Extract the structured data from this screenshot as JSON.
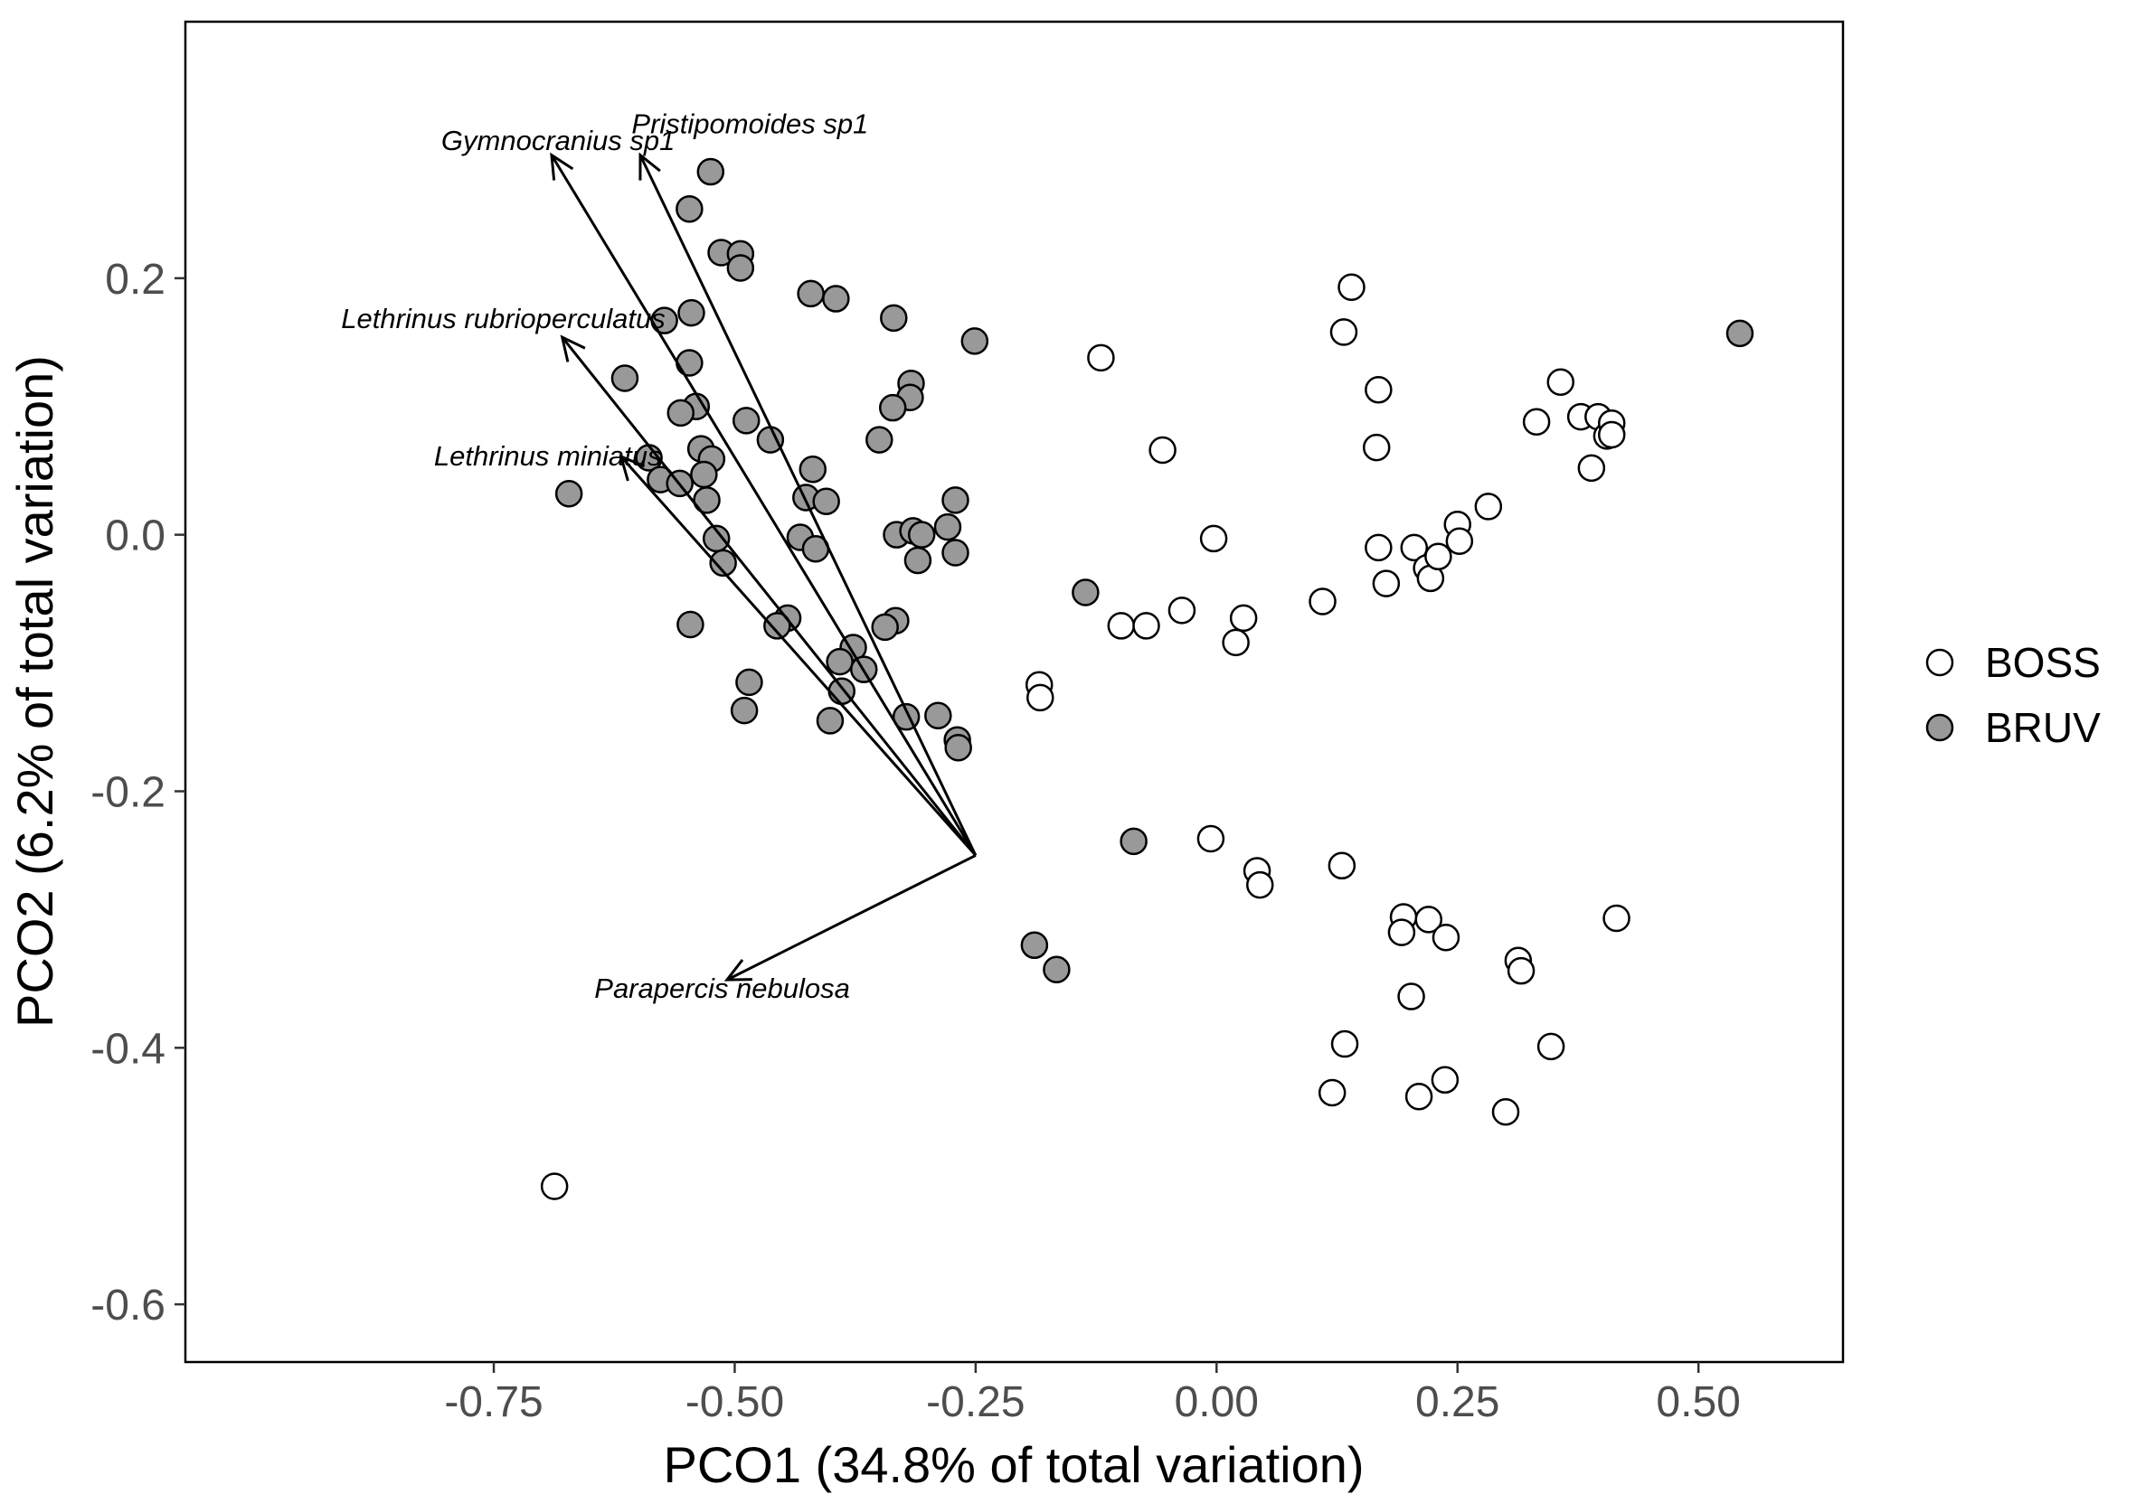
{
  "chart_data": {
    "type": "scatter",
    "title": "",
    "xlabel": "PCO1 (34.8% of total variation)",
    "ylabel": "PCO2 (6.2% of total variation)",
    "xlim": [
      -1.07,
      0.65
    ],
    "ylim": [
      -0.645,
      0.4
    ],
    "x_ticks": [
      -0.75,
      -0.5,
      -0.25,
      0.0,
      0.25,
      0.5
    ],
    "x_tick_labels": [
      "-0.75",
      "-0.50",
      "-0.25",
      "0.00",
      "0.25",
      "0.50"
    ],
    "y_ticks": [
      -0.6,
      -0.4,
      -0.2,
      0.0,
      0.2
    ],
    "y_tick_labels": [
      "-0.6",
      "-0.4",
      "-0.2",
      "0.0",
      "0.2"
    ],
    "grid": false,
    "legend_position": "right",
    "series": [
      {
        "name": "BOSS",
        "fill": "#ffffff",
        "points": [
          [
            -0.687,
            -0.508
          ],
          [
            -0.12,
            0.138
          ],
          [
            -0.056,
            0.066
          ],
          [
            -0.003,
            -0.003
          ],
          [
            -0.036,
            -0.059
          ],
          [
            -0.099,
            -0.071
          ],
          [
            -0.073,
            -0.071
          ],
          [
            0.028,
            -0.065
          ],
          [
            0.02,
            -0.084
          ],
          [
            0.11,
            -0.052
          ],
          [
            -0.184,
            -0.117
          ],
          [
            -0.183,
            -0.127
          ],
          [
            -0.006,
            -0.237
          ],
          [
            0.042,
            -0.262
          ],
          [
            0.045,
            -0.273
          ],
          [
            0.13,
            -0.258
          ],
          [
            0.14,
            0.193
          ],
          [
            0.132,
            0.158
          ],
          [
            0.168,
            0.113
          ],
          [
            0.166,
            0.068
          ],
          [
            0.168,
            -0.01
          ],
          [
            0.176,
            -0.038
          ],
          [
            0.205,
            -0.01
          ],
          [
            0.218,
            -0.026
          ],
          [
            0.222,
            -0.034
          ],
          [
            0.23,
            -0.017
          ],
          [
            0.25,
            0.008
          ],
          [
            0.252,
            -0.005
          ],
          [
            0.282,
            0.022
          ],
          [
            0.332,
            0.088
          ],
          [
            0.357,
            0.119
          ],
          [
            0.378,
            0.092
          ],
          [
            0.396,
            0.092
          ],
          [
            0.405,
            0.077
          ],
          [
            0.41,
            0.087
          ],
          [
            0.41,
            0.078
          ],
          [
            0.389,
            0.052
          ],
          [
            0.194,
            -0.298
          ],
          [
            0.192,
            -0.31
          ],
          [
            0.22,
            -0.3
          ],
          [
            0.238,
            -0.314
          ],
          [
            0.202,
            -0.36
          ],
          [
            0.133,
            -0.397
          ],
          [
            0.12,
            -0.435
          ],
          [
            0.21,
            -0.438
          ],
          [
            0.237,
            -0.425
          ],
          [
            0.3,
            -0.45
          ],
          [
            0.347,
            -0.399
          ],
          [
            0.313,
            -0.332
          ],
          [
            0.316,
            -0.34
          ],
          [
            0.415,
            -0.299
          ]
        ]
      },
      {
        "name": "BRUV",
        "fill": "#999999",
        "points": [
          [
            -0.525,
            0.283
          ],
          [
            -0.547,
            0.254
          ],
          [
            -0.514,
            0.22
          ],
          [
            -0.494,
            0.219
          ],
          [
            -0.494,
            0.208
          ],
          [
            -0.421,
            0.188
          ],
          [
            -0.395,
            0.184
          ],
          [
            -0.335,
            0.169
          ],
          [
            -0.251,
            0.151
          ],
          [
            -0.573,
            0.167
          ],
          [
            -0.545,
            0.173
          ],
          [
            -0.614,
            0.122
          ],
          [
            -0.547,
            0.134
          ],
          [
            -0.54,
            0.1
          ],
          [
            -0.556,
            0.095
          ],
          [
            -0.488,
            0.089
          ],
          [
            -0.463,
            0.074
          ],
          [
            -0.317,
            0.118
          ],
          [
            -0.318,
            0.107
          ],
          [
            -0.336,
            0.099
          ],
          [
            -0.35,
            0.074
          ],
          [
            -0.589,
            0.06
          ],
          [
            -0.535,
            0.067
          ],
          [
            -0.524,
            0.059
          ],
          [
            -0.577,
            0.043
          ],
          [
            -0.532,
            0.047
          ],
          [
            -0.557,
            0.04
          ],
          [
            -0.529,
            0.027
          ],
          [
            -0.419,
            0.051
          ],
          [
            -0.426,
            0.029
          ],
          [
            -0.405,
            0.026
          ],
          [
            -0.672,
            0.032
          ],
          [
            -0.519,
            -0.003
          ],
          [
            -0.512,
            -0.022
          ],
          [
            -0.432,
            -0.002
          ],
          [
            -0.416,
            -0.011
          ],
          [
            -0.332,
            0.0
          ],
          [
            -0.315,
            0.003
          ],
          [
            -0.306,
            0.0
          ],
          [
            -0.31,
            -0.02
          ],
          [
            -0.271,
            0.027
          ],
          [
            -0.279,
            0.006
          ],
          [
            -0.271,
            -0.014
          ],
          [
            -0.546,
            -0.07
          ],
          [
            -0.445,
            -0.065
          ],
          [
            -0.456,
            -0.071
          ],
          [
            -0.333,
            -0.067
          ],
          [
            -0.344,
            -0.072
          ],
          [
            -0.377,
            -0.088
          ],
          [
            -0.391,
            -0.099
          ],
          [
            -0.366,
            -0.105
          ],
          [
            -0.389,
            -0.122
          ],
          [
            -0.485,
            -0.115
          ],
          [
            -0.49,
            -0.137
          ],
          [
            -0.401,
            -0.145
          ],
          [
            -0.322,
            -0.142
          ],
          [
            -0.289,
            -0.141
          ],
          [
            -0.269,
            -0.16
          ],
          [
            -0.268,
            -0.166
          ],
          [
            -0.136,
            -0.045
          ],
          [
            -0.086,
            -0.239
          ],
          [
            -0.189,
            -0.32
          ],
          [
            -0.166,
            -0.339
          ],
          [
            0.543,
            0.157
          ]
        ]
      }
    ],
    "vectors": {
      "origin": [
        -0.25,
        -0.25
      ],
      "items": [
        {
          "label": "Gymnocranius sp1",
          "end": [
            -0.69,
            0.296
          ]
        },
        {
          "label": "Pristipomoides sp1",
          "end": [
            -0.598,
            0.296
          ]
        },
        {
          "label": "Lethrinus rubrioperculatus",
          "end": [
            -0.679,
            0.154
          ]
        },
        {
          "label": "Lethrinus miniatus",
          "end": [
            -0.618,
            0.061
          ]
        },
        {
          "label": "Parapercis nebulosa",
          "end": [
            -0.508,
            -0.347
          ]
        }
      ]
    }
  }
}
